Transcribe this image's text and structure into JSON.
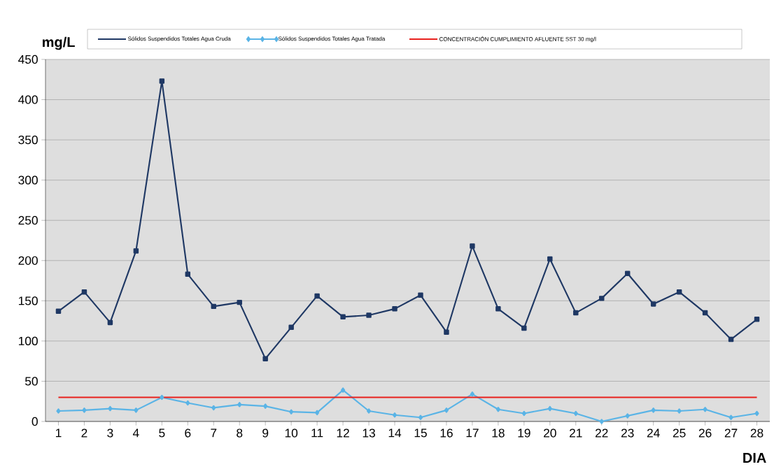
{
  "chart_data": {
    "type": "line",
    "ylabel": "mg/L",
    "xlabel": "DIA",
    "categories": [
      "1",
      "2",
      "3",
      "4",
      "5",
      "6",
      "7",
      "8",
      "9",
      "10",
      "11",
      "12",
      "13",
      "14",
      "15",
      "16",
      "17",
      "18",
      "19",
      "20",
      "21",
      "22",
      "23",
      "24",
      "25",
      "26",
      "27",
      "28"
    ],
    "series": [
      {
        "name": "Sólidos Suspendidos Totales Agua Cruda",
        "color": "#1f3864",
        "marker": "square",
        "values": [
          137,
          161,
          123,
          212,
          423,
          183,
          143,
          148,
          78,
          117,
          156,
          130,
          132,
          140,
          157,
          111,
          218,
          140,
          116,
          202,
          135,
          153,
          184,
          146,
          161,
          135,
          102,
          127
        ]
      },
      {
        "name": "Sólidos Suspendidos Totales Agua Tratada",
        "color": "#5ab4e6",
        "marker": "diamond",
        "values": [
          13,
          14,
          16,
          14,
          30,
          23,
          17,
          21,
          19,
          12,
          11,
          39,
          13,
          8,
          5,
          14,
          34,
          15,
          10,
          16,
          10,
          0,
          7,
          14,
          13,
          15,
          5,
          10
        ]
      },
      {
        "name": "CONCENTRACIÓN CUMPLIMIENTO AFLUENTE SST 30 mg/l",
        "color": "#e8211d",
        "marker": "none",
        "values": [
          30,
          30,
          30,
          30,
          30,
          30,
          30,
          30,
          30,
          30,
          30,
          30,
          30,
          30,
          30,
          30,
          30,
          30,
          30,
          30,
          30,
          30,
          30,
          30,
          30,
          30,
          30,
          30
        ]
      }
    ],
    "ylim": [
      0,
      450
    ],
    "yticks": [
      0,
      50,
      100,
      150,
      200,
      250,
      300,
      350,
      400,
      450
    ],
    "grid": "y",
    "legend": "top"
  }
}
